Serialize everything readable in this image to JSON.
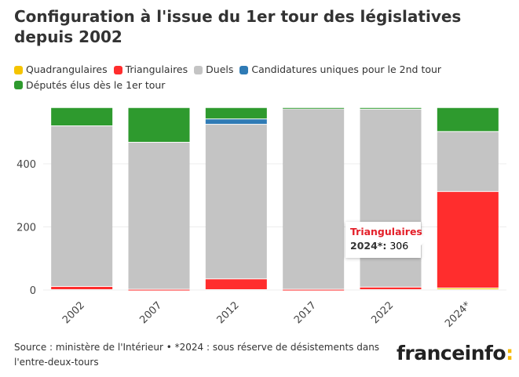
{
  "title": "Configuration à l'issue du 1er tour des législatives depuis 2002",
  "chart_data": {
    "type": "bar",
    "stacked": true,
    "categories": [
      "2002",
      "2007",
      "2012",
      "2017",
      "2022",
      "2024*"
    ],
    "series": [
      {
        "name": "Quadrangulaires",
        "color": "#f5c400",
        "values": [
          0,
          0,
          0,
          0,
          0,
          5
        ]
      },
      {
        "name": "Triangulaires",
        "color": "#ff2d2d",
        "values": [
          10,
          1,
          34,
          1,
          8,
          306
        ]
      },
      {
        "name": "Duels",
        "color": "#c4c4c4",
        "values": [
          509,
          466,
          490,
          572,
          564,
          190
        ]
      },
      {
        "name": "Candidatures uniques pour le 2nd tour",
        "color": "#2f7bb5",
        "values": [
          0,
          0,
          17,
          0,
          0,
          0
        ]
      },
      {
        "name": "Députés élus dès le 1er tour",
        "color": "#2e9a2e",
        "values": [
          58,
          110,
          36,
          4,
          5,
          76
        ]
      }
    ],
    "yticks": [
      0,
      200,
      400
    ],
    "ylim": [
      0,
      577
    ],
    "grid": true,
    "legend": "top",
    "tooltip": {
      "series": "Triangulaires",
      "category": "2024*",
      "value": "306"
    }
  },
  "tooltip": {
    "series": "Triangulaires",
    "label": "2024*:",
    "value": "306"
  },
  "source": "Source : ministère de l'Intérieur • *2024 : sous réserve de désistements dans l'entre-deux-tours",
  "logo": {
    "text": "franceinfo",
    "colon": ":"
  }
}
